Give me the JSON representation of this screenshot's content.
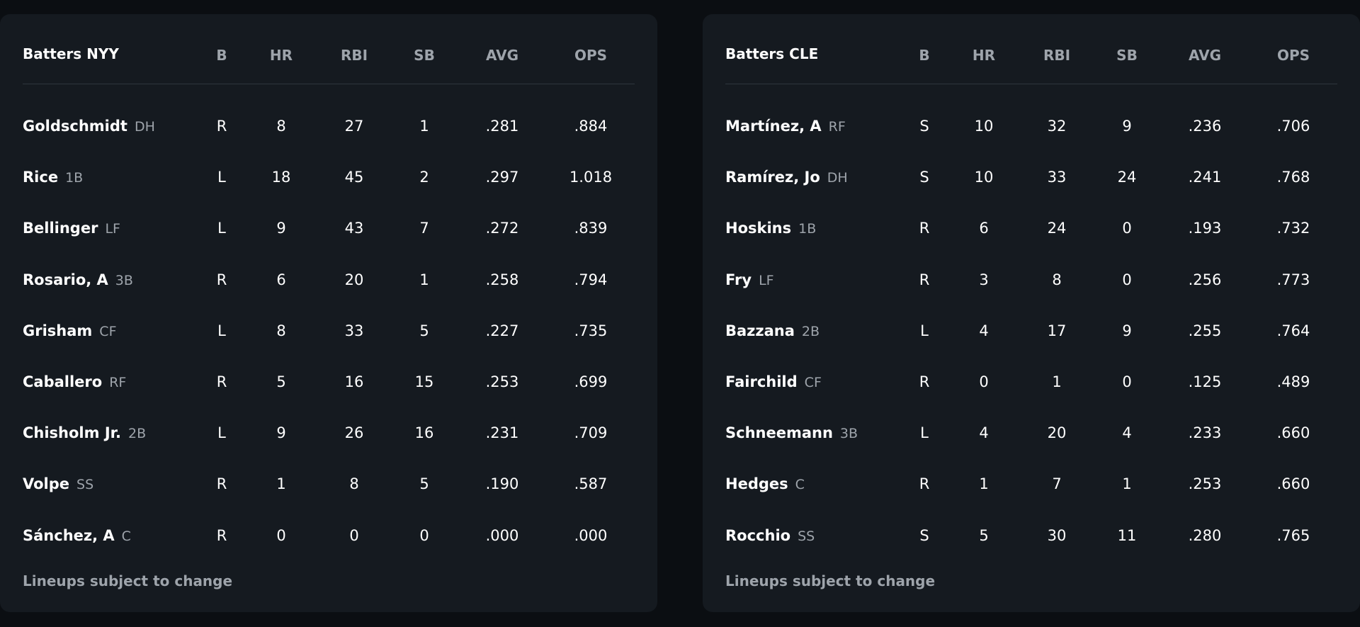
{
  "teams": [
    {
      "title": "Batters NYY",
      "columns": [
        "B",
        "HR",
        "RBI",
        "SB",
        "AVG",
        "OPS"
      ],
      "rows": [
        {
          "name": "Goldschmidt",
          "pos": "DH",
          "stats": [
            "R",
            "8",
            "27",
            "1",
            ".281",
            ".884"
          ]
        },
        {
          "name": "Rice",
          "pos": "1B",
          "stats": [
            "L",
            "18",
            "45",
            "2",
            ".297",
            "1.018"
          ]
        },
        {
          "name": "Bellinger",
          "pos": "LF",
          "stats": [
            "L",
            "9",
            "43",
            "7",
            ".272",
            ".839"
          ]
        },
        {
          "name": "Rosario, A",
          "pos": "3B",
          "stats": [
            "R",
            "6",
            "20",
            "1",
            ".258",
            ".794"
          ]
        },
        {
          "name": "Grisham",
          "pos": "CF",
          "stats": [
            "L",
            "8",
            "33",
            "5",
            ".227",
            ".735"
          ]
        },
        {
          "name": "Caballero",
          "pos": "RF",
          "stats": [
            "R",
            "5",
            "16",
            "15",
            ".253",
            ".699"
          ]
        },
        {
          "name": "Chisholm Jr.",
          "pos": "2B",
          "stats": [
            "L",
            "9",
            "26",
            "16",
            ".231",
            ".709"
          ]
        },
        {
          "name": "Volpe",
          "pos": "SS",
          "stats": [
            "R",
            "1",
            "8",
            "5",
            ".190",
            ".587"
          ]
        },
        {
          "name": "Sánchez, A",
          "pos": "C",
          "stats": [
            "R",
            "0",
            "0",
            "0",
            ".000",
            ".000"
          ]
        }
      ],
      "footer": "Lineups subject to change"
    },
    {
      "title": "Batters CLE",
      "columns": [
        "B",
        "HR",
        "RBI",
        "SB",
        "AVG",
        "OPS"
      ],
      "rows": [
        {
          "name": "Martínez, A",
          "pos": "RF",
          "stats": [
            "S",
            "10",
            "32",
            "9",
            ".236",
            ".706"
          ]
        },
        {
          "name": "Ramírez, Jo",
          "pos": "DH",
          "stats": [
            "S",
            "10",
            "33",
            "24",
            ".241",
            ".768"
          ]
        },
        {
          "name": "Hoskins",
          "pos": "1B",
          "stats": [
            "R",
            "6",
            "24",
            "0",
            ".193",
            ".732"
          ]
        },
        {
          "name": "Fry",
          "pos": "LF",
          "stats": [
            "R",
            "3",
            "8",
            "0",
            ".256",
            ".773"
          ]
        },
        {
          "name": "Bazzana",
          "pos": "2B",
          "stats": [
            "L",
            "4",
            "17",
            "9",
            ".255",
            ".764"
          ]
        },
        {
          "name": "Fairchild",
          "pos": "CF",
          "stats": [
            "R",
            "0",
            "1",
            "0",
            ".125",
            ".489"
          ]
        },
        {
          "name": "Schneemann",
          "pos": "3B",
          "stats": [
            "L",
            "4",
            "20",
            "4",
            ".233",
            ".660"
          ]
        },
        {
          "name": "Hedges",
          "pos": "C",
          "stats": [
            "R",
            "1",
            "7",
            "1",
            ".253",
            ".660"
          ]
        },
        {
          "name": "Rocchio",
          "pos": "SS",
          "stats": [
            "S",
            "5",
            "30",
            "11",
            ".280",
            ".765"
          ]
        }
      ],
      "footer": "Lineups subject to change"
    }
  ]
}
